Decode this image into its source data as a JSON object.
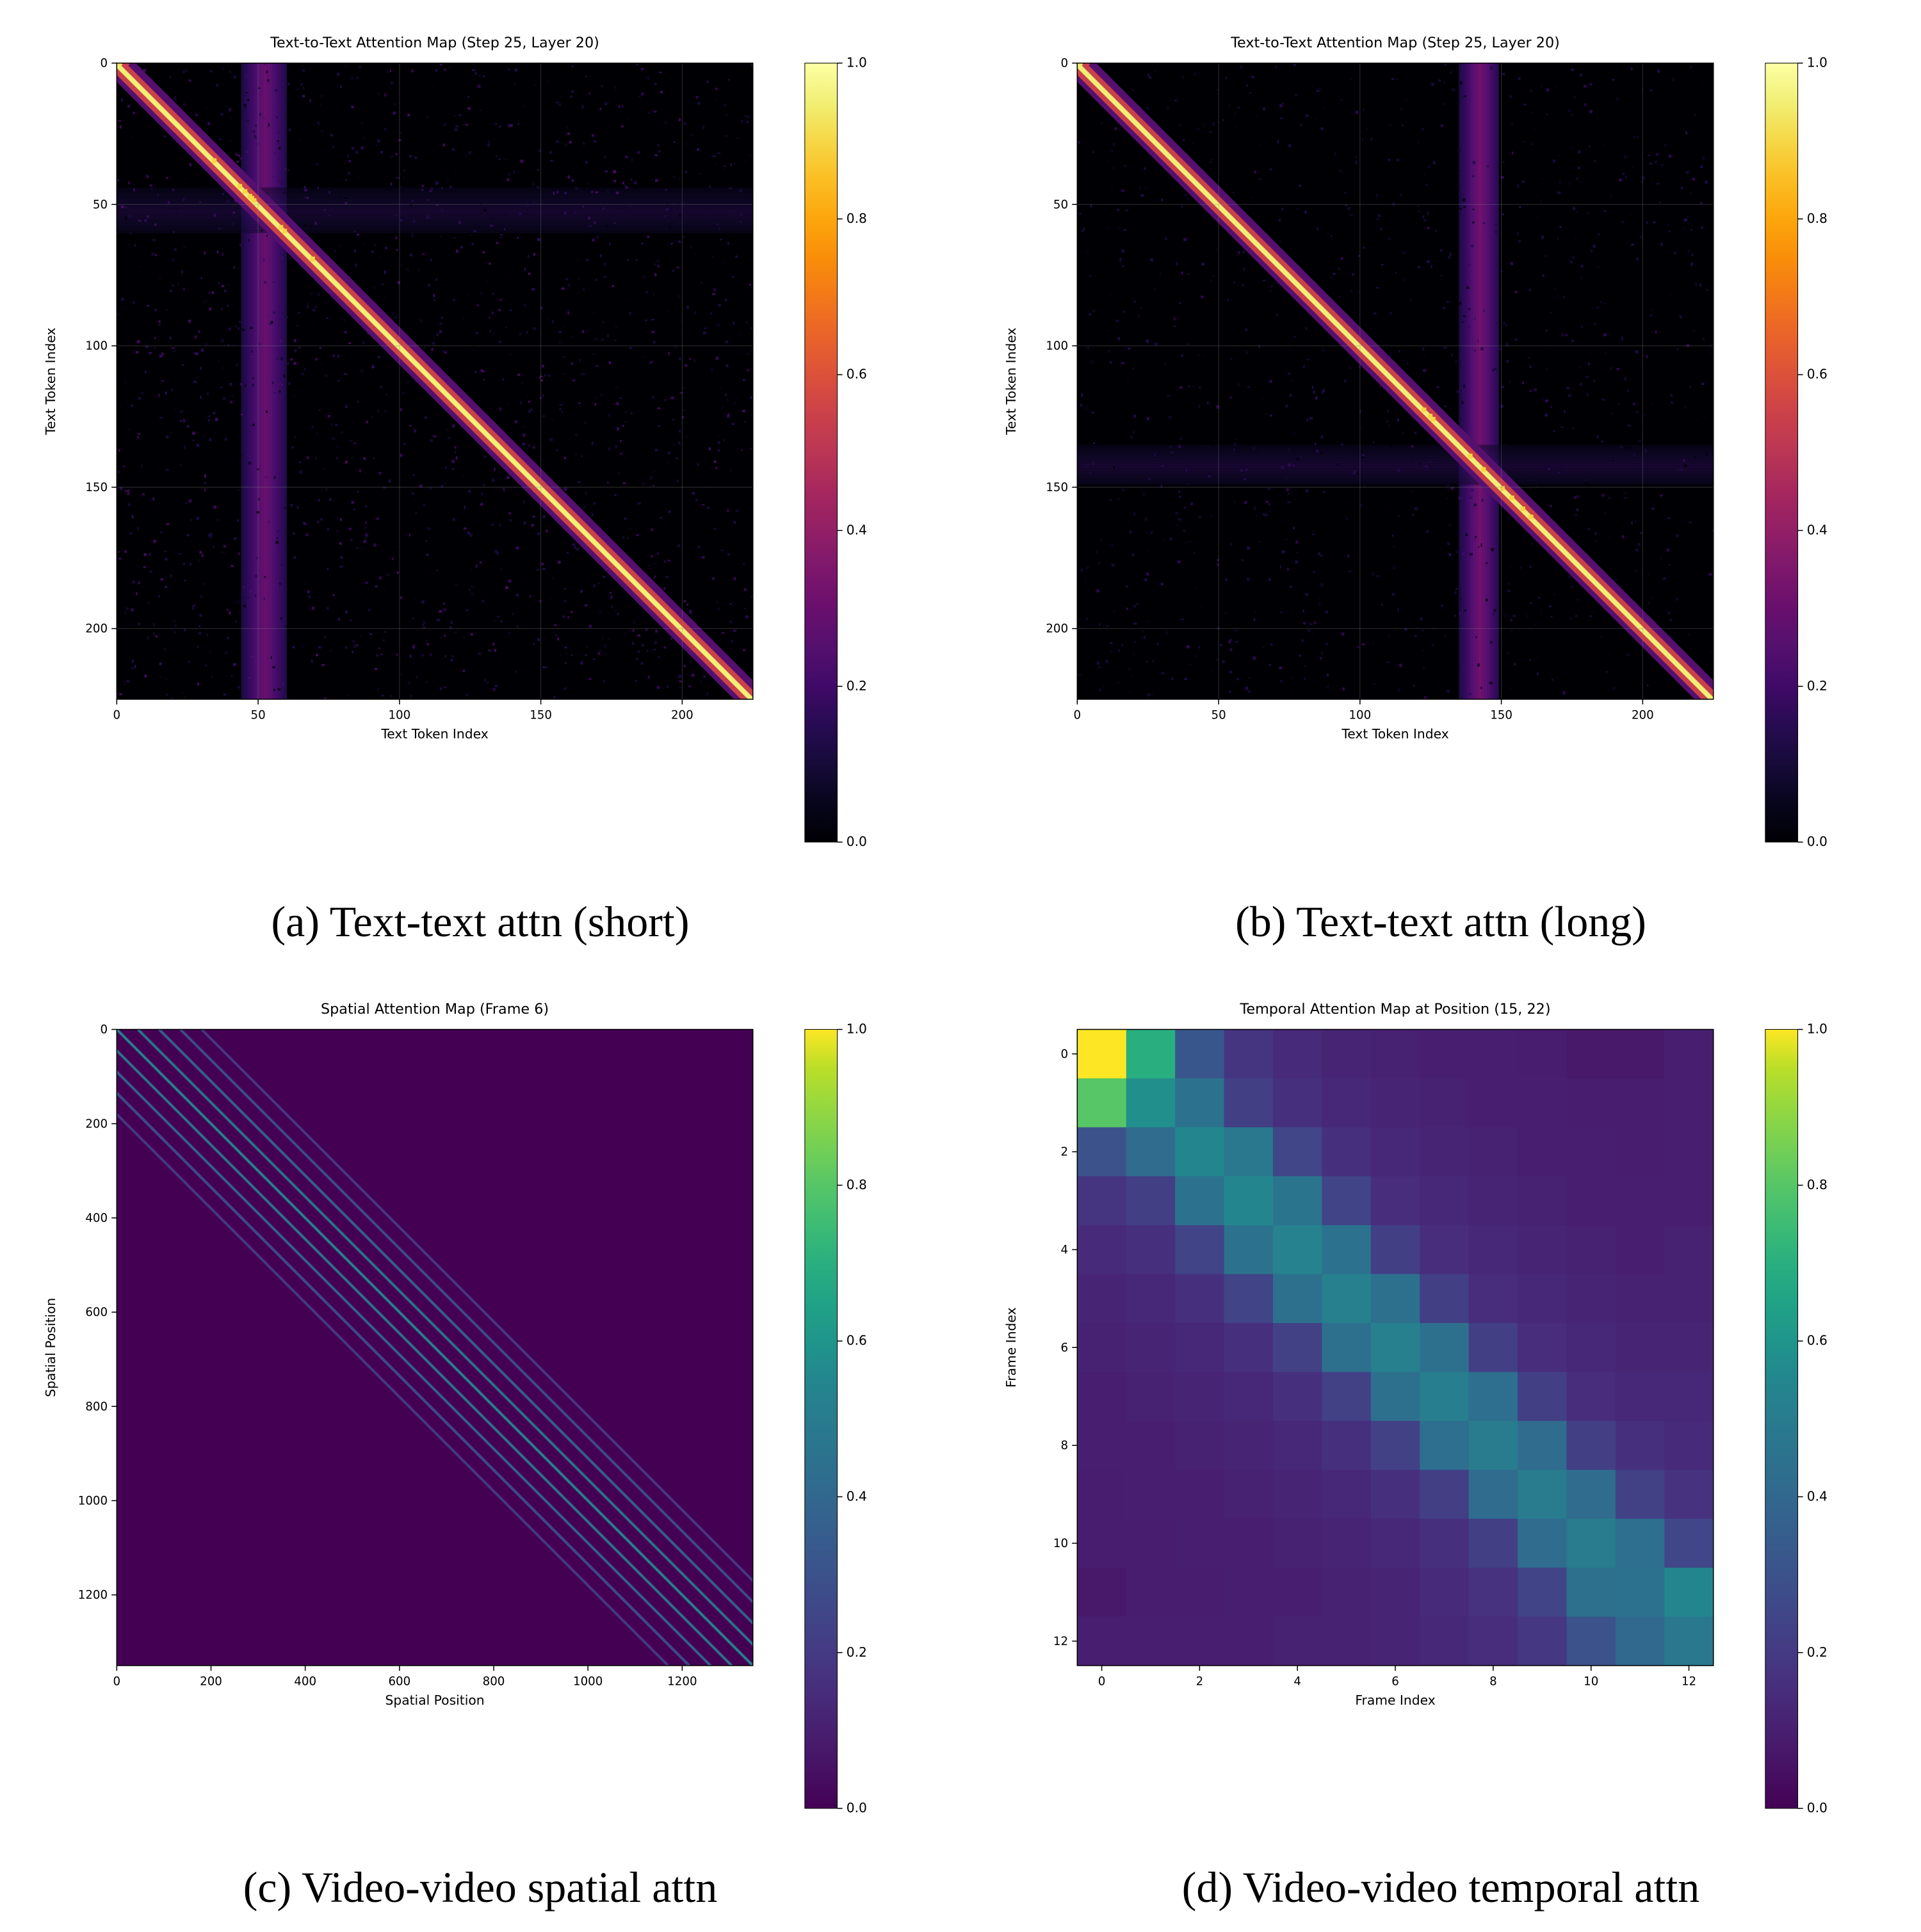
{
  "captions": {
    "a": "(a) Text-text attn (short)",
    "b": "(b) Text-text attn (long)",
    "c": "(c) Video-video spatial attn",
    "d": "(d) Video-video temporal attn"
  },
  "colormap_inferno": [
    [
      0.0,
      "#000004"
    ],
    [
      0.05,
      "#07051b"
    ],
    [
      0.1,
      "#160b39"
    ],
    [
      0.15,
      "#270b52"
    ],
    [
      0.2,
      "#400a67"
    ],
    [
      0.25,
      "#54106e"
    ],
    [
      0.3,
      "#690f6e"
    ],
    [
      0.35,
      "#7d176c"
    ],
    [
      0.4,
      "#921f66"
    ],
    [
      0.45,
      "#a6275e"
    ],
    [
      0.5,
      "#ba3655"
    ],
    [
      0.55,
      "#cb4149"
    ],
    [
      0.6,
      "#dc513a"
    ],
    [
      0.65,
      "#e9632a"
    ],
    [
      0.7,
      "#f37819"
    ],
    [
      0.75,
      "#f98e09"
    ],
    [
      0.8,
      "#fca60c"
    ],
    [
      0.85,
      "#fbbe23"
    ],
    [
      0.9,
      "#f6d746"
    ],
    [
      0.95,
      "#f1ef75"
    ],
    [
      1.0,
      "#fcffa4"
    ]
  ],
  "colormap_viridis": [
    [
      0.0,
      "#440154"
    ],
    [
      0.05,
      "#471164"
    ],
    [
      0.1,
      "#481f70"
    ],
    [
      0.15,
      "#472d7b"
    ],
    [
      0.2,
      "#443a83"
    ],
    [
      0.25,
      "#404688"
    ],
    [
      0.3,
      "#3b528b"
    ],
    [
      0.35,
      "#365d8d"
    ],
    [
      0.4,
      "#31688e"
    ],
    [
      0.45,
      "#2c728e"
    ],
    [
      0.5,
      "#287c8e"
    ],
    [
      0.55,
      "#23868e"
    ],
    [
      0.6,
      "#1f958b"
    ],
    [
      0.65,
      "#20a386"
    ],
    [
      0.7,
      "#29af7f"
    ],
    [
      0.75,
      "#3dbc74"
    ],
    [
      0.8,
      "#56c667"
    ],
    [
      0.85,
      "#75d054"
    ],
    [
      0.9,
      "#95d840"
    ],
    [
      0.95,
      "#bade28"
    ],
    [
      1.0,
      "#fde725"
    ]
  ],
  "panel_a": {
    "type": "heatmap",
    "colormap": "inferno",
    "title": "Text-to-Text Attention Map (Step 25, Layer 20)",
    "xlabel": "Text Token Index",
    "ylabel": "Text Token Index",
    "xlim": [
      0,
      225
    ],
    "ylim": [
      0,
      225
    ],
    "xticks": [
      0,
      50,
      100,
      150,
      200
    ],
    "yticks": [
      0,
      50,
      100,
      150,
      200
    ],
    "grid_color": "#888888",
    "grid_opacity": 0.35,
    "title_fontsize": 22,
    "label_fontsize": 20,
    "tick_fontsize": 18,
    "cbar_ticks": [
      0.0,
      0.2,
      0.4,
      0.6,
      0.8,
      1.0
    ],
    "background": "#000004",
    "diag_width": 2,
    "vband_center": 52,
    "vband_width": 16,
    "vband_intensity": 0.3,
    "speckle_seed": 11,
    "speckle_count": 1800,
    "speckle_max": 0.25
  },
  "panel_b": {
    "type": "heatmap",
    "colormap": "inferno",
    "title": "Text-to-Text Attention Map (Step 25, Layer 20)",
    "xlabel": "Text Token Index",
    "ylabel": "Text Token Index",
    "xlim": [
      0,
      225
    ],
    "ylim": [
      0,
      225
    ],
    "xticks": [
      0,
      50,
      100,
      150,
      200
    ],
    "yticks": [
      0,
      50,
      100,
      150,
      200
    ],
    "grid_color": "#888888",
    "grid_opacity": 0.35,
    "title_fontsize": 22,
    "label_fontsize": 20,
    "tick_fontsize": 18,
    "cbar_ticks": [
      0.0,
      0.2,
      0.4,
      0.6,
      0.8,
      1.0
    ],
    "background": "#000004",
    "diag_width": 2,
    "vband_center": 142,
    "vband_width": 14,
    "vband_intensity": 0.32,
    "speckle_seed": 29,
    "speckle_count": 1200,
    "speckle_max": 0.2
  },
  "panel_c": {
    "type": "heatmap",
    "colormap": "viridis",
    "title": "Spatial Attention Map (Frame 6)",
    "xlabel": "Spatial Position",
    "ylabel": "Spatial Position",
    "xlim": [
      0,
      1350
    ],
    "ylim": [
      0,
      1350
    ],
    "xticks": [
      0,
      200,
      400,
      600,
      800,
      1000,
      1200
    ],
    "yticks": [
      0,
      200,
      400,
      600,
      800,
      1000,
      1200
    ],
    "grid_color": "#ffffff",
    "grid_opacity": 0.0,
    "title_fontsize": 22,
    "label_fontsize": 20,
    "tick_fontsize": 18,
    "cbar_ticks": [
      0.0,
      0.2,
      0.4,
      0.6,
      0.8,
      1.0
    ],
    "background": "#440154",
    "diag_offsets": [
      -180,
      -135,
      -90,
      -45,
      0,
      45,
      90,
      135,
      180
    ],
    "diag_intensity_center": 0.55,
    "diag_intensity_edge": 0.2,
    "diag_stroke": 4
  },
  "panel_d": {
    "type": "heatmap",
    "colormap": "viridis",
    "title": "Temporal Attention Map at Position (15, 22)",
    "xlabel": "Frame Index",
    "ylabel": "Frame Index",
    "xticks": [
      0,
      2,
      4,
      6,
      8,
      10,
      12
    ],
    "yticks": [
      0,
      2,
      4,
      6,
      8,
      10,
      12
    ],
    "title_fontsize": 22,
    "label_fontsize": 20,
    "tick_fontsize": 18,
    "cbar_ticks": [
      0.0,
      0.2,
      0.4,
      0.6,
      0.8,
      1.0
    ],
    "n": 13,
    "matrix": [
      [
        1.0,
        0.7,
        0.32,
        0.18,
        0.14,
        0.12,
        0.11,
        0.1,
        0.1,
        0.09,
        0.08,
        0.08,
        0.1
      ],
      [
        0.8,
        0.58,
        0.45,
        0.22,
        0.16,
        0.13,
        0.12,
        0.11,
        0.1,
        0.1,
        0.09,
        0.09,
        0.1
      ],
      [
        0.3,
        0.42,
        0.55,
        0.48,
        0.25,
        0.16,
        0.13,
        0.12,
        0.11,
        0.1,
        0.1,
        0.09,
        0.1
      ],
      [
        0.18,
        0.22,
        0.45,
        0.55,
        0.46,
        0.24,
        0.15,
        0.13,
        0.12,
        0.11,
        0.1,
        0.1,
        0.1
      ],
      [
        0.14,
        0.16,
        0.24,
        0.45,
        0.53,
        0.45,
        0.22,
        0.15,
        0.13,
        0.12,
        0.11,
        0.1,
        0.11
      ],
      [
        0.12,
        0.13,
        0.16,
        0.24,
        0.44,
        0.52,
        0.44,
        0.22,
        0.15,
        0.13,
        0.12,
        0.11,
        0.11
      ],
      [
        0.11,
        0.12,
        0.13,
        0.16,
        0.23,
        0.44,
        0.52,
        0.44,
        0.22,
        0.15,
        0.13,
        0.12,
        0.12
      ],
      [
        0.1,
        0.11,
        0.12,
        0.13,
        0.16,
        0.23,
        0.44,
        0.51,
        0.43,
        0.22,
        0.15,
        0.13,
        0.13
      ],
      [
        0.1,
        0.1,
        0.11,
        0.12,
        0.13,
        0.16,
        0.23,
        0.43,
        0.5,
        0.42,
        0.22,
        0.16,
        0.14
      ],
      [
        0.09,
        0.1,
        0.1,
        0.11,
        0.12,
        0.13,
        0.16,
        0.22,
        0.42,
        0.5,
        0.42,
        0.23,
        0.17
      ],
      [
        0.09,
        0.09,
        0.1,
        0.1,
        0.11,
        0.12,
        0.13,
        0.16,
        0.22,
        0.42,
        0.5,
        0.43,
        0.25
      ],
      [
        0.08,
        0.09,
        0.09,
        0.1,
        0.1,
        0.11,
        0.12,
        0.14,
        0.17,
        0.24,
        0.44,
        0.45,
        0.55
      ],
      [
        0.1,
        0.1,
        0.1,
        0.1,
        0.11,
        0.11,
        0.12,
        0.13,
        0.15,
        0.19,
        0.3,
        0.4,
        0.48
      ]
    ]
  }
}
